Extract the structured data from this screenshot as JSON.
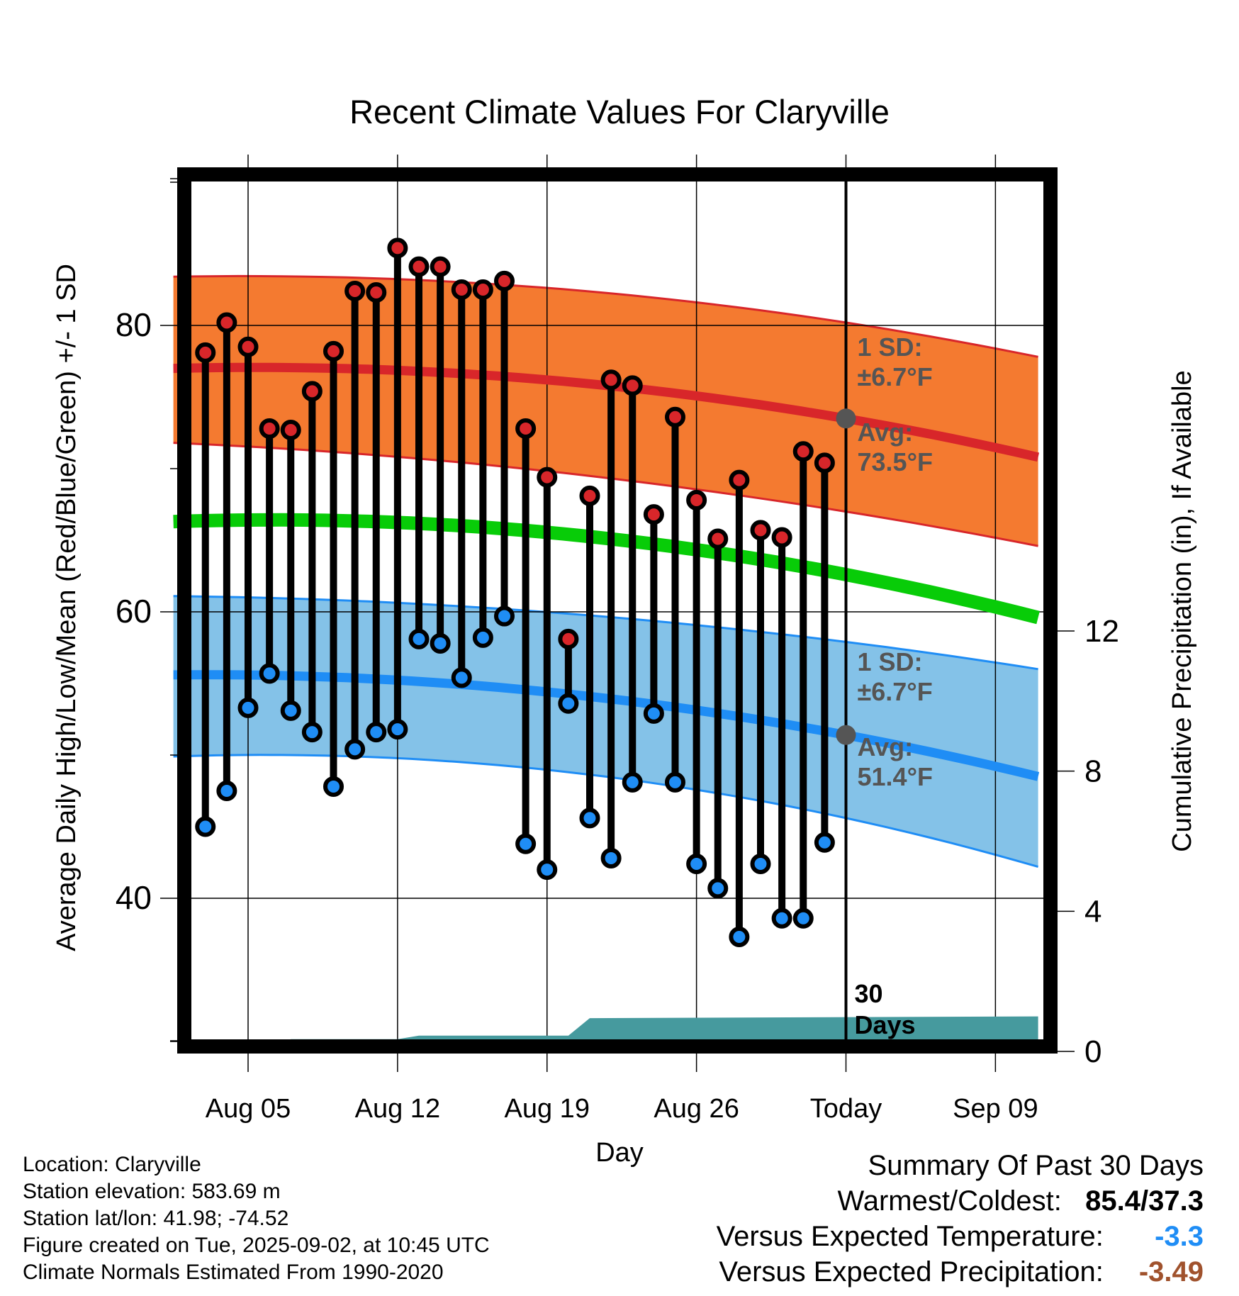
{
  "chart_data": {
    "type": "line",
    "title": "Recent Climate Values For Claryville",
    "xlabel": "Day",
    "ylabel": "Average Daily High/Low/Mean (Red/Blue/Green) +/- 1 SD",
    "y2label": "Cumulative Precipitation (in), If Available",
    "x_ticks": [
      {
        "day": 5,
        "label": "Aug 05"
      },
      {
        "day": 12,
        "label": "Aug 12"
      },
      {
        "day": 19,
        "label": "Aug 19"
      },
      {
        "day": 26,
        "label": "Aug 26"
      },
      {
        "day": 33,
        "label": "Today"
      },
      {
        "day": 40,
        "label": "Sep 09"
      }
    ],
    "xlim": [
      2,
      42
    ],
    "ylim": [
      30,
      91
    ],
    "y_ticks": [
      40,
      60,
      80
    ],
    "y2lim": [
      0,
      24.36
    ],
    "y2_ticks": [
      0,
      4,
      8,
      12
    ],
    "grid": true,
    "today_day": 33,
    "today_label": [
      "30",
      "Days"
    ],
    "observed": {
      "days": [
        3,
        4,
        5,
        6,
        7,
        8,
        9,
        10,
        11,
        12,
        13,
        14,
        15,
        16,
        17,
        18,
        19,
        20,
        21,
        22,
        23,
        24,
        25,
        26,
        27,
        28,
        29,
        30,
        31,
        32
      ],
      "highs": [
        78.1,
        80.2,
        78.5,
        72.8,
        72.7,
        75.4,
        78.2,
        82.4,
        82.3,
        85.4,
        84.1,
        84.1,
        82.5,
        82.5,
        83.1,
        72.8,
        69.4,
        58.1,
        68.1,
        76.2,
        75.8,
        66.8,
        73.6,
        67.8,
        65.1,
        69.2,
        65.7,
        65.2,
        71.2,
        70.4
      ],
      "lows": [
        45.0,
        47.5,
        53.3,
        55.7,
        53.1,
        51.6,
        47.8,
        50.4,
        51.6,
        51.8,
        58.1,
        57.8,
        55.4,
        58.2,
        59.7,
        43.8,
        42.0,
        53.6,
        45.6,
        42.8,
        48.1,
        52.9,
        48.1,
        42.4,
        40.7,
        37.3,
        42.4,
        38.6,
        38.6,
        43.9
      ]
    },
    "normal_high": {
      "days": [
        1.5,
        33,
        42
      ],
      "avg": [
        77.0,
        73.5,
        70.8
      ],
      "upper": [
        83.4,
        80.2,
        77.8
      ],
      "lower": [
        71.8,
        67.0,
        64.6
      ]
    },
    "normal_low": {
      "days": [
        1.5,
        33,
        42
      ],
      "avg": [
        55.6,
        51.4,
        48.5
      ],
      "upper": [
        61.1,
        57.9,
        56.0
      ],
      "lower": [
        49.9,
        45.6,
        42.2
      ]
    },
    "normal_mean": {
      "days": [
        1.5,
        33,
        42
      ],
      "values": [
        66.3,
        62.6,
        59.6
      ]
    },
    "precipitation": {
      "days": [
        1.5,
        3.0,
        3.5,
        6.5,
        7.0,
        12.0,
        13.0,
        20.0,
        21.0,
        42.0
      ],
      "values": [
        0,
        0,
        0,
        0,
        0.35,
        0.35,
        0.45,
        0.45,
        0.95,
        1.0
      ]
    },
    "annotations": {
      "high_sd": [
        "1 SD:",
        "±6.7°F"
      ],
      "high_avg": [
        "Avg:",
        "73.5°F"
      ],
      "low_sd": [
        "1 SD:",
        "±6.7°F"
      ],
      "low_avg": [
        "Avg:",
        "51.4°F"
      ]
    },
    "colors": {
      "high_band": "#f47a30",
      "high_band_edge": "#d8262a",
      "high_avg_line": "#d8262a",
      "low_band": "#84c2e8",
      "low_band_edge": "#1f8df5",
      "low_avg_line": "#1f8df5",
      "mean_line": "#08cc08",
      "precip_fill": "#469a9e",
      "high_marker": "#d8262a",
      "low_marker": "#1f8df5",
      "annotation_text": "#555555",
      "today_marker": "#555555"
    }
  },
  "info": {
    "location": "Location: Claryville",
    "elevation": "Station elevation: 583.69 m",
    "latlon": "Station lat/lon: 41.98; -74.52",
    "created": "Figure created on Tue, 2025-09-02, at 10:45 UTC",
    "normals": "Climate Normals Estimated From 1990-2020"
  },
  "summary": {
    "title": "Summary Of Past 30 Days",
    "warmest_coldest_label": "Warmest/Coldest:",
    "warmest_coldest_value": "85.4/37.3",
    "temp_label": "Versus Expected Temperature:",
    "temp_value": "-3.3",
    "temp_color": "#1f8df5",
    "precip_label": "Versus Expected Precipitation:",
    "precip_value": "-3.49",
    "precip_color": "#a0522d"
  }
}
